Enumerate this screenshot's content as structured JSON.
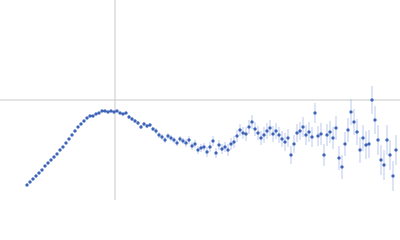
{
  "chart_data": {
    "type": "scatter",
    "color": "#3d64b8",
    "error_color": "#a9bde6",
    "ref_color": "#c8c8c8",
    "xlim": [
      0,
      400
    ],
    "ylim": [
      -100,
      100
    ],
    "ref_x": 115,
    "ref_y": 0,
    "series": [
      {
        "x": [
          27,
          30,
          33,
          36,
          39,
          42,
          45,
          48,
          51,
          54,
          57,
          60,
          63,
          66,
          69,
          72,
          75,
          78,
          81,
          84,
          87,
          90,
          93,
          96,
          99,
          102,
          105,
          108,
          111,
          114,
          117,
          120,
          123,
          126,
          129,
          132,
          135,
          138,
          141,
          144,
          147,
          150,
          153,
          156,
          159,
          162,
          165,
          168,
          171,
          174,
          177,
          180,
          183,
          186,
          189,
          192,
          195,
          198,
          201,
          204,
          207,
          210,
          213,
          216,
          219,
          222,
          225,
          228,
          231,
          234,
          237,
          240,
          243,
          246,
          249,
          252,
          255,
          258,
          261,
          264,
          267,
          270,
          273,
          276,
          279,
          282,
          285,
          288,
          291,
          294,
          297,
          300,
          303,
          306,
          309,
          312,
          315,
          318,
          321,
          324,
          327,
          330,
          333,
          336,
          339,
          342,
          345,
          348,
          351,
          354,
          357,
          360,
          363,
          366,
          369,
          372,
          375,
          378,
          381,
          384,
          387,
          390,
          393,
          396
        ],
        "values": [
          -85,
          -82,
          -79,
          -76,
          -73,
          -70,
          -66,
          -63,
          -60,
          -57,
          -54,
          -50,
          -47,
          -43,
          -39,
          -35,
          -31,
          -27,
          -24,
          -21,
          -18,
          -16,
          -16,
          -14,
          -13,
          -11,
          -11,
          -12,
          -11,
          -12,
          -11,
          -13,
          -14,
          -13,
          -17,
          -19,
          -21,
          -23,
          -27,
          -24,
          -26,
          -25,
          -29,
          -31,
          -35,
          -37,
          -40,
          -36,
          -38,
          -40,
          -43,
          -39,
          -41,
          -43,
          -40,
          -46,
          -44,
          -50,
          -48,
          -47,
          -52,
          -47,
          -41,
          -53,
          -45,
          -49,
          -47,
          -50,
          -44,
          -42,
          -36,
          -30,
          -33,
          -34,
          -27,
          -22,
          -29,
          -33,
          -38,
          -35,
          -31,
          -28,
          -34,
          -31,
          -35,
          -39,
          -42,
          -38,
          -55,
          -44,
          -33,
          -31,
          -27,
          -35,
          -32,
          -37,
          -13,
          -36,
          -34,
          -55,
          -35,
          -32,
          -38,
          -28,
          -58,
          -67,
          -44,
          -30,
          -12,
          -22,
          -32,
          -50,
          -38,
          -45,
          -44,
          0,
          -20,
          -40,
          -60,
          -65,
          -40,
          -55,
          -76,
          -50
        ],
        "errors": [
          1,
          1,
          1,
          1,
          1,
          1,
          1,
          1,
          1,
          1,
          1,
          1,
          1,
          1,
          1,
          1,
          1,
          1,
          1,
          1,
          1,
          1,
          1,
          1,
          1,
          1,
          1,
          1,
          1,
          1,
          1,
          1,
          1,
          1,
          2,
          2,
          2,
          2,
          2,
          2,
          2,
          2,
          2,
          3,
          3,
          3,
          3,
          3,
          3,
          3,
          3,
          3,
          3,
          4,
          4,
          4,
          4,
          4,
          4,
          4,
          5,
          5,
          5,
          5,
          5,
          5,
          5,
          6,
          6,
          6,
          6,
          6,
          6,
          7,
          7,
          7,
          7,
          7,
          7,
          8,
          8,
          8,
          8,
          8,
          8,
          8,
          9,
          9,
          9,
          9,
          9,
          9,
          10,
          10,
          10,
          10,
          10,
          10,
          11,
          11,
          11,
          11,
          11,
          12,
          12,
          12,
          12,
          12,
          13,
          13,
          13,
          13,
          13,
          14,
          14,
          14,
          14,
          15,
          15,
          15,
          15,
          15,
          15,
          15
        ]
      }
    ]
  }
}
